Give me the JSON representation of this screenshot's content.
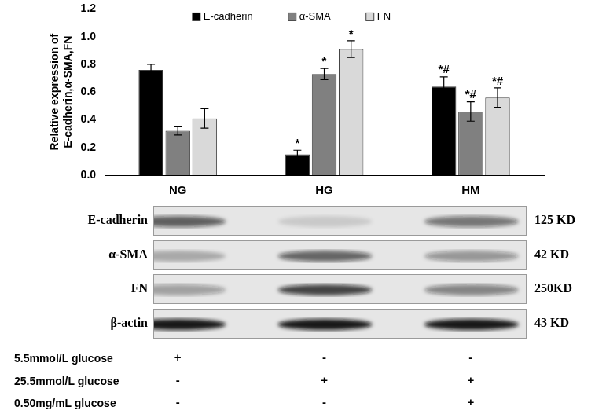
{
  "chart_data": {
    "type": "bar",
    "y_label": [
      "Relative expression of",
      "E-cadherin,α-SMA,FN"
    ],
    "categories": [
      "NG",
      "HG",
      "HM"
    ],
    "series": [
      {
        "name": "E-cadherin",
        "color": "#000000",
        "values": [
          0.76,
          0.15,
          0.64
        ],
        "errors": [
          0.04,
          0.03,
          0.07
        ],
        "significance": [
          null,
          "*",
          "*#"
        ]
      },
      {
        "name": "α-SMA",
        "color": "#808080",
        "values": [
          0.32,
          0.73,
          0.46
        ],
        "errors": [
          0.03,
          0.04,
          0.07
        ],
        "significance": [
          null,
          "*",
          "*#"
        ]
      },
      {
        "name": "FN",
        "color": "#d9d9d9",
        "values": [
          0.41,
          0.91,
          0.56
        ],
        "errors": [
          0.07,
          0.06,
          0.07
        ],
        "significance": [
          null,
          "*",
          "*#"
        ]
      }
    ],
    "ylim": [
      0,
      1.2
    ],
    "yticks": [
      {
        "value": 0,
        "label": "0.0"
      },
      0.2,
      0.4,
      0.6,
      0.8,
      {
        "value": 1,
        "label": "1.0"
      },
      1.2
    ],
    "grid": false,
    "legend": "top"
  },
  "blot": {
    "rows": [
      {
        "label": "E-cadherin",
        "size": "125 KD"
      },
      {
        "label": "α-SMA",
        "size": "42 KD"
      },
      {
        "label": "FN",
        "size": "250KD"
      },
      {
        "label": "β-actin",
        "size": "43 KD"
      }
    ]
  },
  "conditions": [
    {
      "label": "5.5mmol/L glucose",
      "marks": [
        "+",
        "-",
        "-"
      ]
    },
    {
      "label": "25.5mmol/L glucose",
      "marks": [
        "-",
        "+",
        "+"
      ]
    },
    {
      "label": "0.50mg/mL glucose",
      "marks": [
        "-",
        "-",
        "+"
      ]
    }
  ]
}
